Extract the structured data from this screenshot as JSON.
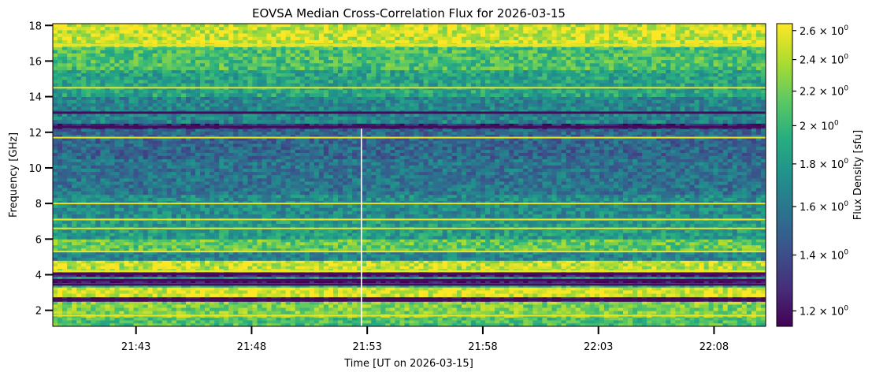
{
  "chart_data": {
    "type": "heatmap",
    "title": "EOVSA Median Cross-Correlation Flux for 2026-03-15",
    "xlabel": "Time [UT on 2026-03-15]",
    "ylabel": "Frequency [GHz]",
    "colorbar_label": "Flux Density [sfu]",
    "colormap": "viridis",
    "colorbar_scale": "log",
    "colorbar_range": [
      1.15,
      2.65
    ],
    "colorbar_ticks": [
      {
        "value": 1.2,
        "label": "1.2 × 10^0"
      },
      {
        "value": 1.4,
        "label": "1.4 × 10^0"
      },
      {
        "value": 1.6,
        "label": "1.6 × 10^0"
      },
      {
        "value": 1.8,
        "label": "1.8 × 10^0"
      },
      {
        "value": 2.0,
        "label": "2 × 10^0"
      },
      {
        "value": 2.2,
        "label": "2.2 × 10^0"
      },
      {
        "value": 2.4,
        "label": "2.4 × 10^0"
      },
      {
        "value": 2.6,
        "label": "2.6 × 10^0"
      }
    ],
    "x_range": [
      "21:39:24",
      "22:10:14"
    ],
    "y_range": [
      1.1,
      18.1
    ],
    "x_ticks": [
      "21:43",
      "21:48",
      "21:53",
      "21:58",
      "22:03",
      "22:08"
    ],
    "y_ticks": [
      2,
      4,
      6,
      8,
      10,
      12,
      14,
      16,
      18
    ],
    "frequency_bands": [
      {
        "f0": 1.1,
        "f1": 1.6,
        "level": 0.7
      },
      {
        "f0": 1.6,
        "f1": 2.5,
        "level": 0.8
      },
      {
        "f0": 2.5,
        "f1": 2.75,
        "level": 0.02
      },
      {
        "f0": 2.75,
        "f1": 3.3,
        "level": 0.95
      },
      {
        "f0": 3.3,
        "f1": 3.55,
        "level": 0.6
      },
      {
        "f0": 3.55,
        "f1": 3.75,
        "level": 0.05
      },
      {
        "f0": 3.75,
        "f1": 3.9,
        "level": 0.55
      },
      {
        "f0": 3.9,
        "f1": 4.15,
        "level": 0.05
      },
      {
        "f0": 4.15,
        "f1": 4.8,
        "level": 0.9
      },
      {
        "f0": 4.8,
        "f1": 5.3,
        "level": 0.45
      },
      {
        "f0": 5.3,
        "f1": 6.0,
        "level": 0.75
      },
      {
        "f0": 6.0,
        "f1": 7.2,
        "level": 0.55
      },
      {
        "f0": 7.2,
        "f1": 8.5,
        "level": 0.48
      },
      {
        "f0": 8.5,
        "f1": 10.5,
        "level": 0.38
      },
      {
        "f0": 10.5,
        "f1": 12.2,
        "level": 0.33
      },
      {
        "f0": 12.2,
        "f1": 12.5,
        "level": 0.12
      },
      {
        "f0": 12.5,
        "f1": 14.0,
        "level": 0.45
      },
      {
        "f0": 14.0,
        "f1": 15.5,
        "level": 0.58
      },
      {
        "f0": 15.5,
        "f1": 16.8,
        "level": 0.7
      },
      {
        "f0": 16.8,
        "f1": 18.1,
        "level": 0.92
      }
    ],
    "bright_lines_GHz": [
      1.7,
      4.2,
      5.3,
      6.6,
      7.1,
      8.0,
      11.7,
      14.5,
      16.9
    ],
    "dark_lines_GHz": [
      2.6,
      3.45,
      3.7,
      4.05,
      12.3,
      13.1
    ],
    "vertical_streak": {
      "time": "21:52:45",
      "f0": 1.1,
      "f1": 12.2
    }
  }
}
